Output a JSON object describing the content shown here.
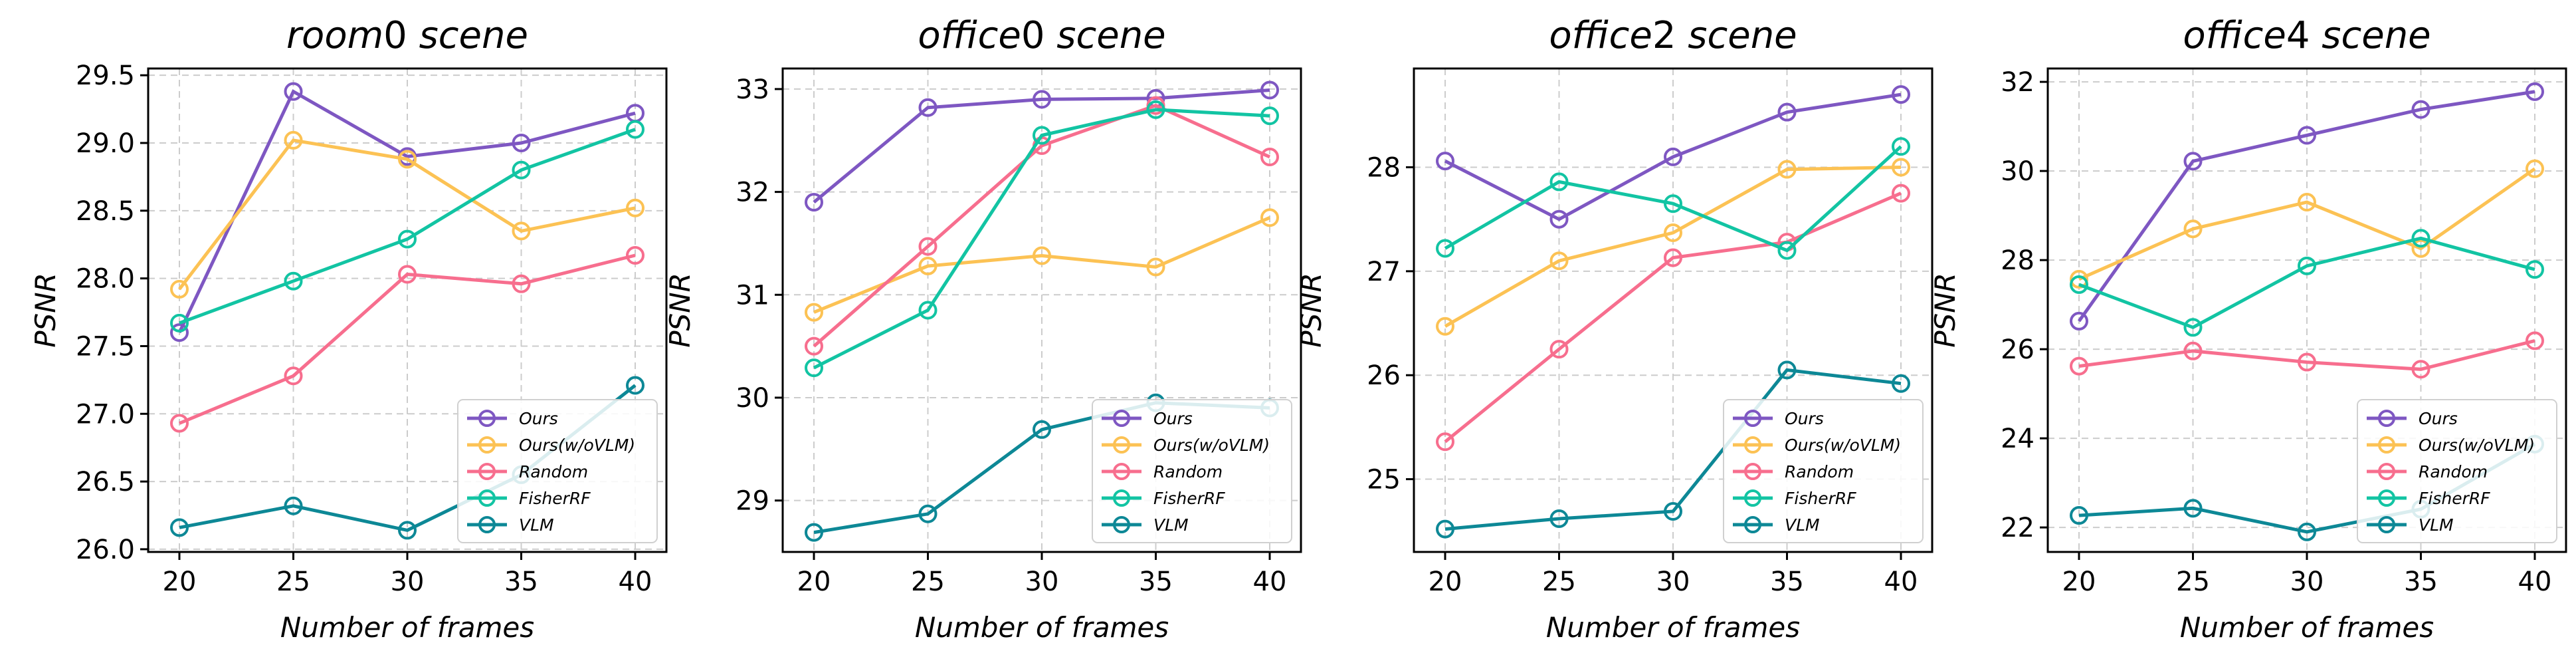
{
  "chart_data": [
    {
      "type": "line",
      "title_italic": "room",
      "title_rest": "0 scene",
      "xlabel": "Number of frames",
      "ylabel": "PSNR",
      "x": [
        20,
        25,
        30,
        35,
        40
      ],
      "xticks": [
        "20",
        "25",
        "30",
        "35",
        "40"
      ],
      "ylim": [
        25.98,
        29.55
      ],
      "yticks": [
        26.0,
        26.5,
        27.0,
        27.5,
        28.0,
        28.5,
        29.0,
        29.5
      ],
      "ytick_labels": [
        "26.0",
        "26.5",
        "27.0",
        "27.5",
        "28.0",
        "28.5",
        "29.0",
        "29.5"
      ],
      "legend": "lower-right",
      "series": [
        {
          "name": "Ours",
          "values": [
            27.6,
            29.38,
            28.9,
            29.0,
            29.22
          ]
        },
        {
          "name": "Ours(w/oVLM)",
          "values": [
            27.92,
            29.02,
            28.88,
            28.35,
            28.52
          ]
        },
        {
          "name": "Random",
          "values": [
            26.93,
            27.28,
            28.03,
            27.96,
            28.17
          ]
        },
        {
          "name": "FisherRF",
          "values": [
            27.67,
            27.98,
            28.29,
            28.8,
            29.1
          ]
        },
        {
          "name": "VLM",
          "values": [
            26.16,
            26.32,
            26.14,
            26.55,
            27.21
          ]
        }
      ]
    },
    {
      "type": "line",
      "title_italic": "office",
      "title_rest": "0 scene",
      "xlabel": "Number of frames",
      "ylabel": "PSNR",
      "x": [
        20,
        25,
        30,
        35,
        40
      ],
      "xticks": [
        "20",
        "25",
        "30",
        "35",
        "40"
      ],
      "ylim": [
        28.5,
        33.2
      ],
      "yticks": [
        29,
        30,
        31,
        32,
        33
      ],
      "ytick_labels": [
        "29",
        "30",
        "31",
        "32",
        "33"
      ],
      "legend": "lower-right",
      "series": [
        {
          "name": "Ours",
          "values": [
            31.9,
            32.82,
            32.9,
            32.91,
            32.99
          ]
        },
        {
          "name": "Ours(w/oVLM)",
          "values": [
            30.83,
            31.28,
            31.38,
            31.27,
            31.75
          ]
        },
        {
          "name": "Random",
          "values": [
            30.5,
            31.47,
            32.45,
            32.84,
            32.34
          ]
        },
        {
          "name": "FisherRF",
          "values": [
            30.29,
            30.85,
            32.55,
            32.8,
            32.74
          ]
        },
        {
          "name": "VLM",
          "values": [
            28.69,
            28.87,
            29.69,
            29.95,
            29.9
          ]
        }
      ]
    },
    {
      "type": "line",
      "title_italic": "office",
      "title_rest": "2 scene",
      "xlabel": "Number of frames",
      "ylabel": "PSNR",
      "x": [
        20,
        25,
        30,
        35,
        40
      ],
      "xticks": [
        "20",
        "25",
        "30",
        "35",
        "40"
      ],
      "ylim": [
        24.3,
        28.95
      ],
      "yticks": [
        25,
        26,
        27,
        28
      ],
      "ytick_labels": [
        "25",
        "26",
        "27",
        "28"
      ],
      "legend": "lower-right",
      "series": [
        {
          "name": "Ours",
          "values": [
            28.06,
            27.5,
            28.1,
            28.53,
            28.7
          ]
        },
        {
          "name": "Ours(w/oVLM)",
          "values": [
            26.47,
            27.1,
            27.37,
            27.98,
            28.0
          ]
        },
        {
          "name": "Random",
          "values": [
            25.36,
            26.25,
            27.13,
            27.28,
            27.75
          ]
        },
        {
          "name": "FisherRF",
          "values": [
            27.22,
            27.86,
            27.65,
            27.2,
            28.2
          ]
        },
        {
          "name": "VLM",
          "values": [
            24.52,
            24.62,
            24.69,
            26.05,
            25.92
          ]
        }
      ]
    },
    {
      "type": "line",
      "title_italic": "office",
      "title_rest": "4 scene",
      "xlabel": "Number of frames",
      "ylabel": "PSNR",
      "x": [
        20,
        25,
        30,
        35,
        40
      ],
      "xticks": [
        "20",
        "25",
        "30",
        "35",
        "40"
      ],
      "ylim": [
        21.45,
        32.3
      ],
      "yticks": [
        22,
        24,
        26,
        28,
        30,
        32
      ],
      "ytick_labels": [
        "22",
        "24",
        "26",
        "28",
        "30",
        "32"
      ],
      "legend": "lower-right",
      "series": [
        {
          "name": "Ours",
          "values": [
            26.63,
            30.22,
            30.8,
            31.38,
            31.78
          ]
        },
        {
          "name": "Ours(w/oVLM)",
          "values": [
            27.57,
            28.7,
            29.3,
            28.26,
            30.05
          ]
        },
        {
          "name": "Random",
          "values": [
            25.62,
            25.96,
            25.71,
            25.55,
            26.19
          ]
        },
        {
          "name": "FisherRF",
          "values": [
            27.45,
            26.49,
            27.87,
            28.49,
            27.79
          ]
        },
        {
          "name": "VLM",
          "values": [
            22.27,
            22.43,
            21.9,
            22.41,
            23.87
          ]
        }
      ]
    }
  ],
  "colors": {
    "Ours": "#7e57c2",
    "Ours(w/oVLM)": "#fcc254",
    "Random": "#f76e8e",
    "FisherRF": "#12c4a3",
    "VLM": "#0d8896"
  }
}
